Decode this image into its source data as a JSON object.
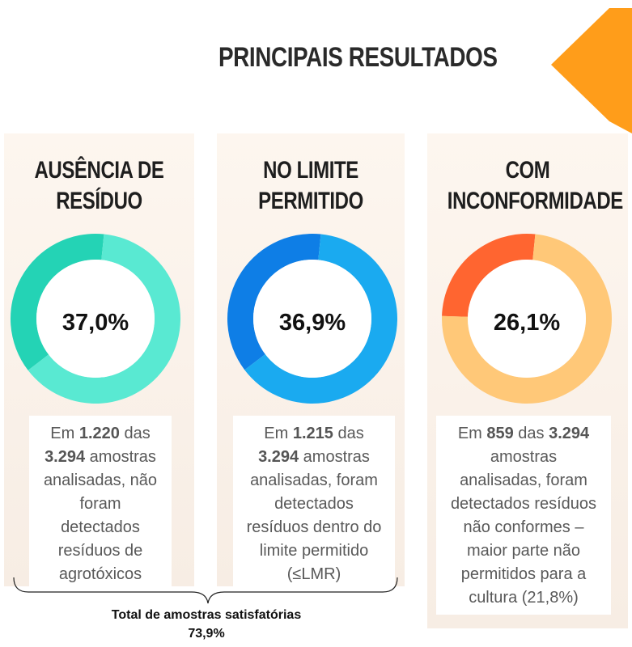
{
  "header": {
    "title": "PRINCIPAIS RESULTADOS"
  },
  "chart_data": [
    {
      "type": "pie",
      "title_lines": [
        "AUSÊNCIA DE",
        "RESÍDUO"
      ],
      "center_label": "37,0%",
      "value": 37.0,
      "colors": {
        "value": "#59e9d2",
        "rest": "#24d3b5"
      },
      "desc": [
        {
          "parts": [
            {
              "t": "Em ",
              "b": false
            },
            {
              "t": "1.220",
              "b": true
            },
            {
              "t": " das",
              "b": false
            }
          ]
        },
        {
          "parts": [
            {
              "t": "3.294",
              "b": true
            },
            {
              "t": " amostras",
              "b": false
            }
          ]
        },
        {
          "parts": [
            {
              "t": "analisadas, não",
              "b": false
            }
          ]
        },
        {
          "parts": [
            {
              "t": "foram",
              "b": false
            }
          ]
        },
        {
          "parts": [
            {
              "t": "detectados",
              "b": false
            }
          ]
        },
        {
          "parts": [
            {
              "t": "resíduos de",
              "b": false
            }
          ]
        },
        {
          "parts": [
            {
              "t": "agrotóxicos",
              "b": false
            }
          ]
        }
      ]
    },
    {
      "type": "pie",
      "title_lines": [
        "NO LIMITE",
        "PERMITIDO"
      ],
      "center_label": "36,9%",
      "value": 36.9,
      "colors": {
        "value": "#1aaaf0",
        "rest": "#0e7ee6"
      },
      "desc": [
        {
          "parts": [
            {
              "t": "Em ",
              "b": false
            },
            {
              "t": "1.215",
              "b": true
            },
            {
              "t": " das",
              "b": false
            }
          ]
        },
        {
          "parts": [
            {
              "t": "3.294",
              "b": true
            },
            {
              "t": " amostras",
              "b": false
            }
          ]
        },
        {
          "parts": [
            {
              "t": "analisadas, foram",
              "b": false
            }
          ]
        },
        {
          "parts": [
            {
              "t": "detectados",
              "b": false
            }
          ]
        },
        {
          "parts": [
            {
              "t": "resíduos dentro do",
              "b": false
            }
          ]
        },
        {
          "parts": [
            {
              "t": "limite permitido",
              "b": false
            }
          ]
        },
        {
          "parts": [
            {
              "t": "(≤LMR)",
              "b": false
            }
          ]
        }
      ]
    },
    {
      "type": "pie",
      "title_lines": [
        "COM",
        "INCONFORMIDADE"
      ],
      "center_label": "26,1%",
      "value": 26.1,
      "colors": {
        "value": "#ffc878",
        "rest": "#ff6530"
      },
      "desc": [
        {
          "parts": [
            {
              "t": "Em ",
              "b": false
            },
            {
              "t": "859",
              "b": true
            },
            {
              "t": " das ",
              "b": false
            },
            {
              "t": "3.294",
              "b": true
            }
          ]
        },
        {
          "parts": [
            {
              "t": "amostras",
              "b": false
            }
          ]
        },
        {
          "parts": [
            {
              "t": "analisadas, foram",
              "b": false
            }
          ]
        },
        {
          "parts": [
            {
              "t": "detectados resíduos",
              "b": false
            }
          ]
        },
        {
          "parts": [
            {
              "t": "não conformes –",
              "b": false
            }
          ]
        },
        {
          "parts": [
            {
              "t": "maior parte não",
              "b": false
            }
          ]
        },
        {
          "parts": [
            {
              "t": "permitidos para a",
              "b": false
            }
          ]
        },
        {
          "parts": [
            {
              "t": "cultura (21,8%)",
              "b": false
            }
          ]
        }
      ]
    }
  ],
  "total": {
    "label": "Total de amostras satisfatórias",
    "value": "73,9%"
  },
  "colors": {
    "accent_orange": "#ff9d1a",
    "background_panel": "#f9f0e8"
  }
}
